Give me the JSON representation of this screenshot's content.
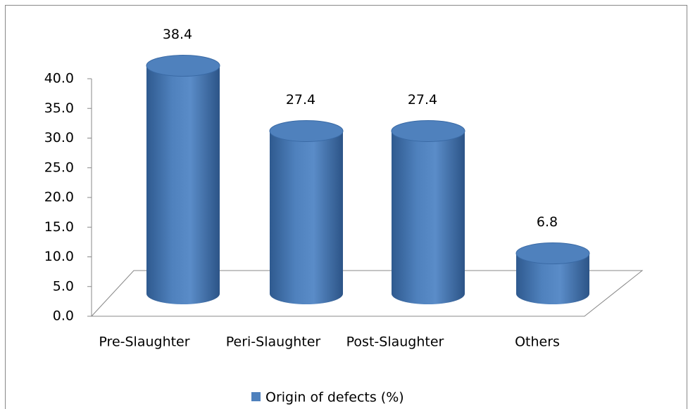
{
  "chart_data": {
    "type": "bar3d",
    "categories": [
      "Pre-Slaughter",
      "Peri-Slaughter",
      "Post-Slaughter",
      "Others"
    ],
    "series": [
      {
        "name": "Origin of defects (%)",
        "color": "#4f81bd",
        "values": [
          38.4,
          27.4,
          27.4,
          6.8
        ]
      }
    ],
    "ylim": [
      0,
      40
    ],
    "yticks": [
      {
        "value": 0,
        "label": "0.0"
      },
      {
        "value": 5,
        "label": "5.0"
      },
      {
        "value": 10,
        "label": "10.0"
      },
      {
        "value": 15,
        "label": "15.0"
      },
      {
        "value": 20,
        "label": "20.0"
      },
      {
        "value": 25,
        "label": "25.0"
      },
      {
        "value": 30,
        "label": "30.0"
      },
      {
        "value": 35,
        "label": "35.0"
      },
      {
        "value": 40,
        "label": "40.0"
      }
    ],
    "grid": false,
    "legend": "bottom"
  }
}
